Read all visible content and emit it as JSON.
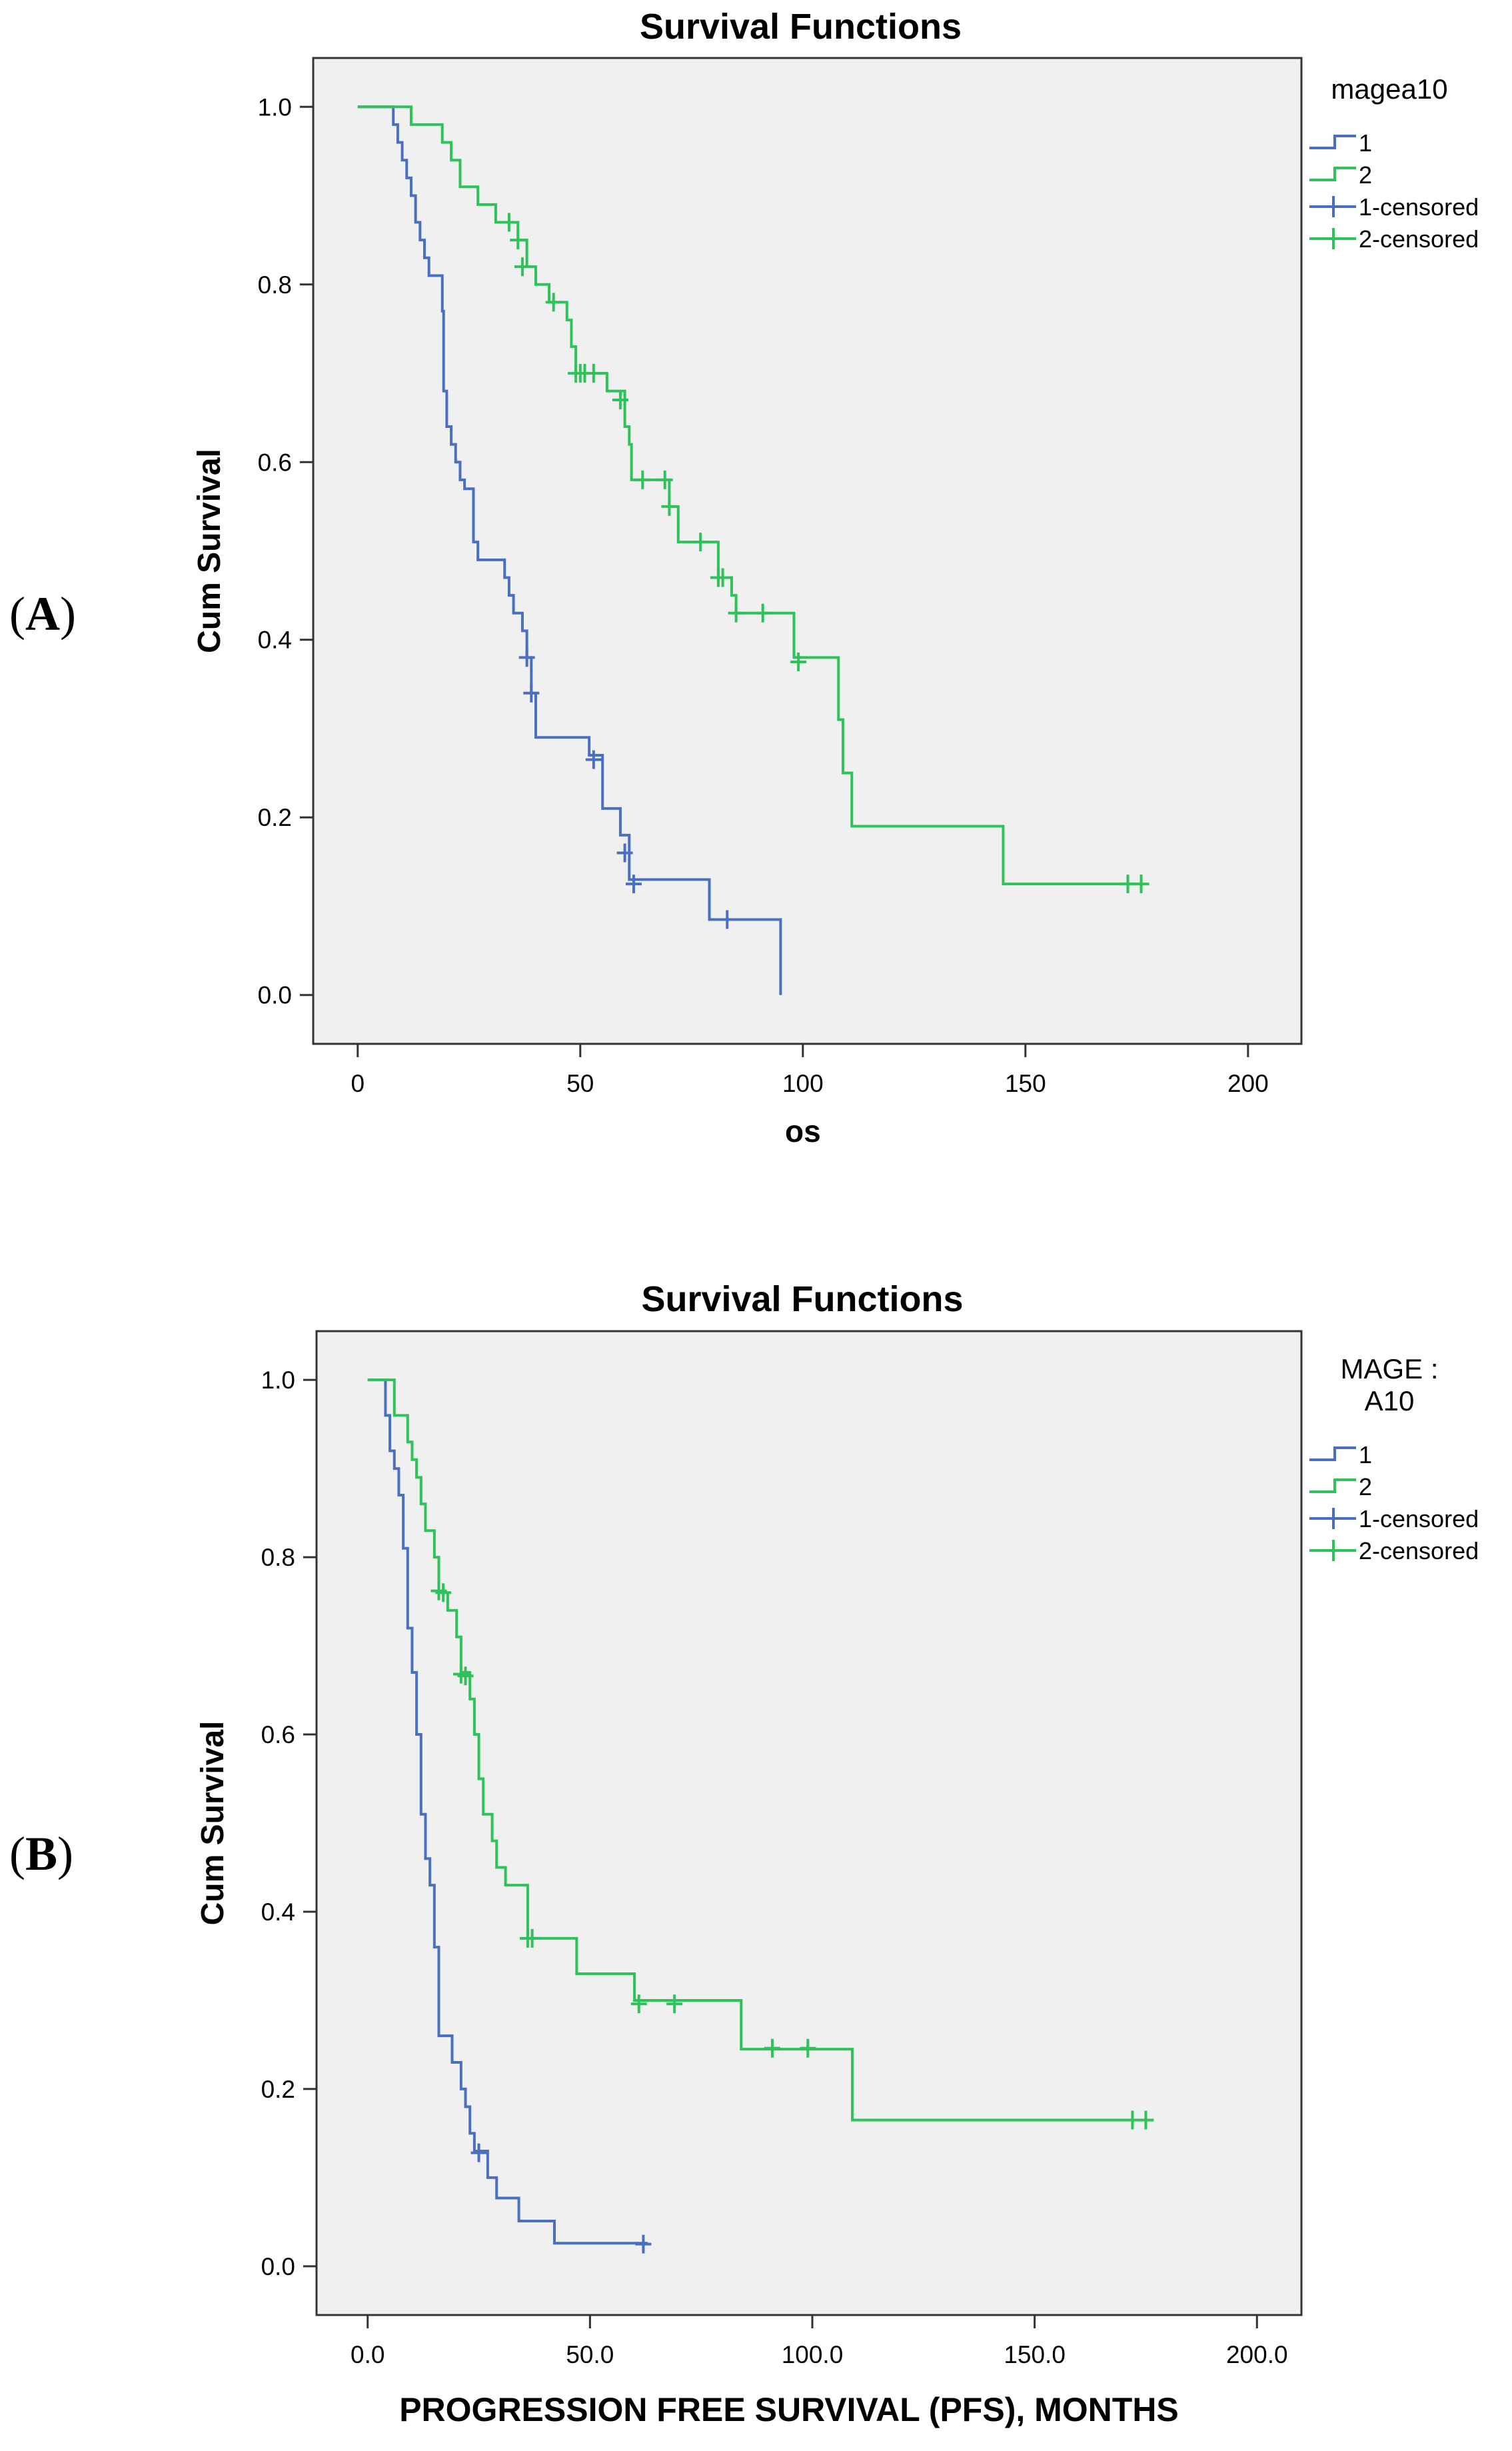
{
  "panels": [
    {
      "label_open": "(",
      "label_letter": "A",
      "label_close": ")"
    },
    {
      "label_open": "(",
      "label_letter": "B",
      "label_close": ")"
    }
  ],
  "chart_data": [
    {
      "type": "line",
      "step": true,
      "title": "Survival Functions",
      "xlabel": "os",
      "ylabel": "Cum Survival",
      "xlim": [
        -10,
        212
      ],
      "ylim": [
        -0.055,
        1.055
      ],
      "xticks": [
        0,
        50,
        100,
        150,
        200
      ],
      "xtick_labels": [
        "0",
        "50",
        "100",
        "150",
        "200"
      ],
      "yticks": [
        0.0,
        0.2,
        0.4,
        0.6,
        0.8,
        1.0
      ],
      "ytick_labels": [
        "0.0",
        "0.2",
        "0.4",
        "0.6",
        "0.8",
        "1.0"
      ],
      "legend_title": [
        "magea10"
      ],
      "legend": [
        {
          "text": "1",
          "color": "#4a6fc0",
          "kind": "step"
        },
        {
          "text": "2",
          "color": "#2ec25a",
          "kind": "step"
        },
        {
          "text": "1-censored",
          "color": "#4a6fc0",
          "kind": "cross"
        },
        {
          "text": "2-censored",
          "color": "#2ec25a",
          "kind": "cross"
        }
      ],
      "series": [
        {
          "name": "1",
          "color": "#4a6fc0",
          "points": [
            [
              0,
              1.0
            ],
            [
              8,
              0.98
            ],
            [
              9,
              0.96
            ],
            [
              10,
              0.94
            ],
            [
              11,
              0.92
            ],
            [
              12,
              0.9
            ],
            [
              13,
              0.87
            ],
            [
              14,
              0.85
            ],
            [
              15,
              0.83
            ],
            [
              16,
              0.81
            ],
            [
              19,
              0.77
            ],
            [
              19.3,
              0.68
            ],
            [
              20,
              0.64
            ],
            [
              21,
              0.62
            ],
            [
              22,
              0.6
            ],
            [
              23,
              0.58
            ],
            [
              24,
              0.57
            ],
            [
              26,
              0.51
            ],
            [
              27,
              0.49
            ],
            [
              33,
              0.47
            ],
            [
              34,
              0.45
            ],
            [
              35,
              0.43
            ],
            [
              37,
              0.41
            ],
            [
              38,
              0.38
            ],
            [
              39,
              0.34
            ],
            [
              40,
              0.29
            ],
            [
              52,
              0.27
            ],
            [
              55,
              0.21
            ],
            [
              59,
              0.18
            ],
            [
              61,
              0.13
            ],
            [
              79,
              0.085
            ],
            [
              95,
              0.0
            ]
          ],
          "censored": [
            [
              38,
              0.38
            ],
            [
              39,
              0.34
            ],
            [
              53,
              0.265
            ],
            [
              60,
              0.16
            ],
            [
              62,
              0.125
            ],
            [
              83,
              0.085
            ]
          ]
        },
        {
          "name": "2",
          "color": "#2ec25a",
          "points": [
            [
              0,
              1.0
            ],
            [
              12,
              0.98
            ],
            [
              19,
              0.96
            ],
            [
              21,
              0.94
            ],
            [
              23,
              0.91
            ],
            [
              27,
              0.89
            ],
            [
              31,
              0.87
            ],
            [
              36,
              0.85
            ],
            [
              38,
              0.82
            ],
            [
              40,
              0.8
            ],
            [
              43,
              0.78
            ],
            [
              47,
              0.76
            ],
            [
              48,
              0.73
            ],
            [
              49,
              0.7
            ],
            [
              56,
              0.68
            ],
            [
              60,
              0.64
            ],
            [
              61,
              0.62
            ],
            [
              61.5,
              0.58
            ],
            [
              69,
              0.58
            ],
            [
              70,
              0.55
            ],
            [
              72,
              0.51
            ],
            [
              81,
              0.47
            ],
            [
              84,
              0.45
            ],
            [
              85,
              0.43
            ],
            [
              98,
              0.38
            ],
            [
              108,
              0.31
            ],
            [
              109,
              0.25
            ],
            [
              111,
              0.19
            ],
            [
              145,
              0.125
            ]
          ],
          "end_x": 176,
          "censored": [
            [
              34,
              0.87
            ],
            [
              36,
              0.85
            ],
            [
              37,
              0.82
            ],
            [
              44,
              0.78
            ],
            [
              49,
              0.7
            ],
            [
              50,
              0.7
            ],
            [
              51,
              0.7
            ],
            [
              53,
              0.7
            ],
            [
              59,
              0.67
            ],
            [
              64,
              0.58
            ],
            [
              69,
              0.58
            ],
            [
              70,
              0.55
            ],
            [
              77,
              0.51
            ],
            [
              81,
              0.47
            ],
            [
              82,
              0.47
            ],
            [
              85,
              0.43
            ],
            [
              91,
              0.43
            ],
            [
              99,
              0.375
            ],
            [
              173,
              0.125
            ],
            [
              176,
              0.125
            ]
          ]
        }
      ]
    },
    {
      "type": "line",
      "step": true,
      "title": "Survival Functions",
      "xlabel": "PROGRESSION FREE SURVIVAL (PFS), MONTHS",
      "ylabel": "Cum Survival",
      "xlim": [
        -11.5,
        210
      ],
      "ylim": [
        -0.055,
        1.055
      ],
      "xticks": [
        0,
        50,
        100,
        150,
        200
      ],
      "xtick_labels": [
        "0.0",
        "50.0",
        "100.0",
        "150.0",
        "200.0"
      ],
      "yticks": [
        0.0,
        0.2,
        0.4,
        0.6,
        0.8,
        1.0
      ],
      "ytick_labels": [
        "0.0",
        "0.2",
        "0.4",
        "0.6",
        "0.8",
        "1.0"
      ],
      "legend_title": [
        "MAGE :",
        "A10"
      ],
      "legend": [
        {
          "text": "1",
          "color": "#4a6fc0",
          "kind": "step"
        },
        {
          "text": "2",
          "color": "#2ec25a",
          "kind": "step"
        },
        {
          "text": "1-censored",
          "color": "#4a6fc0",
          "kind": "cross"
        },
        {
          "text": "2-censored",
          "color": "#2ec25a",
          "kind": "cross"
        }
      ],
      "series": [
        {
          "name": "1",
          "color": "#4a6fc0",
          "points": [
            [
              0,
              1.0
            ],
            [
              4,
              0.96
            ],
            [
              5,
              0.92
            ],
            [
              6,
              0.9
            ],
            [
              7,
              0.87
            ],
            [
              8,
              0.81
            ],
            [
              9,
              0.72
            ],
            [
              10,
              0.67
            ],
            [
              11,
              0.6
            ],
            [
              12,
              0.51
            ],
            [
              13,
              0.46
            ],
            [
              14,
              0.43
            ],
            [
              15,
              0.36
            ],
            [
              16,
              0.26
            ],
            [
              19,
              0.23
            ],
            [
              21,
              0.2
            ],
            [
              22,
              0.18
            ],
            [
              23,
              0.15
            ],
            [
              24,
              0.13
            ],
            [
              27,
              0.1
            ],
            [
              29,
              0.077
            ],
            [
              34,
              0.051
            ],
            [
              42,
              0.026
            ]
          ],
          "end_x": 63,
          "censored": [
            [
              25,
              0.128
            ],
            [
              62,
              0.025
            ]
          ]
        },
        {
          "name": "2",
          "color": "#2ec25a",
          "points": [
            [
              0,
              1.0
            ],
            [
              6,
              0.96
            ],
            [
              9,
              0.93
            ],
            [
              10,
              0.91
            ],
            [
              11,
              0.89
            ],
            [
              12,
              0.86
            ],
            [
              13,
              0.83
            ],
            [
              15,
              0.8
            ],
            [
              16,
              0.76
            ],
            [
              18,
              0.74
            ],
            [
              20,
              0.71
            ],
            [
              21,
              0.67
            ],
            [
              23,
              0.64
            ],
            [
              24,
              0.6
            ],
            [
              25,
              0.55
            ],
            [
              26,
              0.51
            ],
            [
              28,
              0.48
            ],
            [
              29,
              0.45
            ],
            [
              31,
              0.43
            ],
            [
              36,
              0.37
            ],
            [
              47,
              0.33
            ],
            [
              60,
              0.3
            ],
            [
              84,
              0.245
            ],
            [
              109,
              0.165
            ]
          ],
          "end_x": 175,
          "censored": [
            [
              16,
              0.762
            ],
            [
              17,
              0.76
            ],
            [
              21,
              0.668
            ],
            [
              22,
              0.666
            ],
            [
              36,
              0.37
            ],
            [
              37,
              0.37
            ],
            [
              61,
              0.296
            ],
            [
              69,
              0.296
            ],
            [
              91,
              0.246
            ],
            [
              99,
              0.246
            ],
            [
              172,
              0.165
            ],
            [
              175,
              0.165
            ]
          ]
        }
      ]
    }
  ]
}
